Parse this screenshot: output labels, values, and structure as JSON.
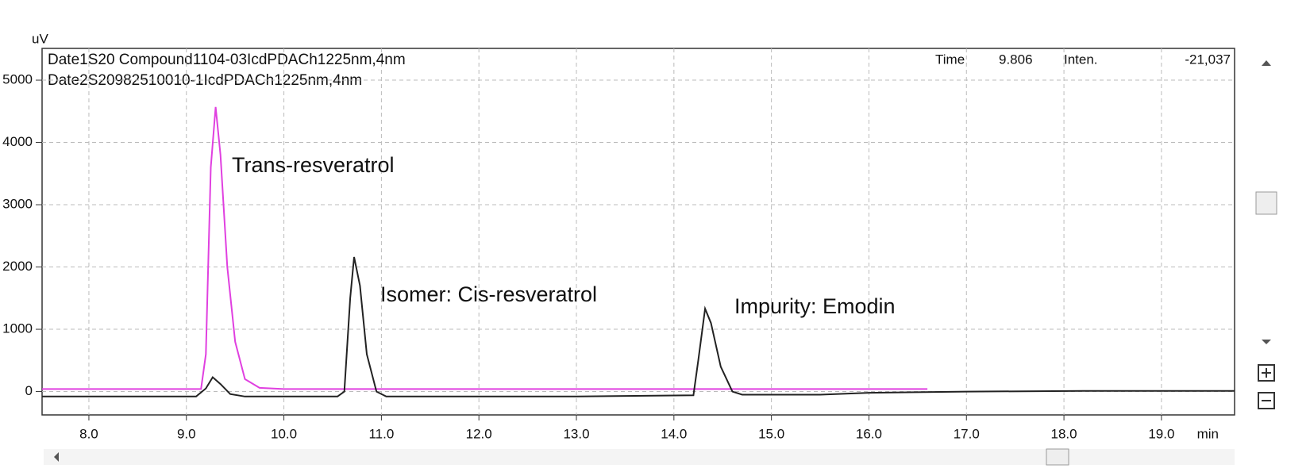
{
  "chart_data": {
    "type": "line",
    "y_label": "uV",
    "x_label": "min",
    "header_lines": [
      "Date1S20 Compound1104-03IcdPDACh1225nm,4nm",
      "Date2S20982510010-1IcdPDACh1225nm,4nm"
    ],
    "cursor": {
      "time_label": "Time",
      "time": "9.806",
      "intensity_label": "Inten.",
      "intensity": "-21,037"
    },
    "annotations": [
      "Trans-resveratrol",
      "Isomer: Cis-resveratrol",
      "Impurity: Emodin"
    ],
    "xlim": [
      7.52,
      19.75
    ],
    "ylim": [
      -375,
      5510
    ],
    "xticks": [
      {
        "value": 8,
        "label": "8.0"
      },
      {
        "value": 9,
        "label": "9.0"
      },
      {
        "value": 10,
        "label": "10.0"
      },
      {
        "value": 11,
        "label": "11.0"
      },
      {
        "value": 12,
        "label": "12.0"
      },
      {
        "value": 13,
        "label": "13.0"
      },
      {
        "value": 14,
        "label": "14.0"
      },
      {
        "value": 15,
        "label": "15.0"
      },
      {
        "value": 16,
        "label": "16.0"
      },
      {
        "value": 17,
        "label": "17.0"
      },
      {
        "value": 18,
        "label": "18.0"
      },
      {
        "value": 19,
        "label": "19.0"
      }
    ],
    "yticks": [
      0,
      1000,
      2000,
      3000,
      4000,
      5000
    ],
    "grid": true,
    "series": [
      {
        "color": "#e040e0",
        "x": [
          7.52,
          9.15,
          9.2,
          9.25,
          9.3,
          9.35,
          9.42,
          9.5,
          9.6,
          9.75,
          10.0,
          16.6
        ],
        "values": [
          40,
          40,
          600,
          3600,
          4570,
          3800,
          2000,
          800,
          200,
          60,
          40,
          40
        ]
      },
      {
        "color": "#222222",
        "x": [
          7.52,
          9.1,
          9.2,
          9.27,
          9.35,
          9.45,
          9.6,
          10.55,
          10.62,
          10.68,
          10.72,
          10.78,
          10.85,
          10.95,
          11.05,
          13.0,
          14.2,
          14.25,
          14.32,
          14.38,
          14.48,
          14.6,
          14.7,
          15.5,
          16.0,
          17.0,
          18.2,
          19.75
        ],
        "values": [
          -80,
          -80,
          50,
          230,
          120,
          -40,
          -80,
          -80,
          0,
          1500,
          2160,
          1700,
          600,
          0,
          -80,
          -80,
          -60,
          500,
          1330,
          1100,
          400,
          0,
          -50,
          -50,
          -20,
          0,
          10,
          10
        ]
      }
    ]
  }
}
